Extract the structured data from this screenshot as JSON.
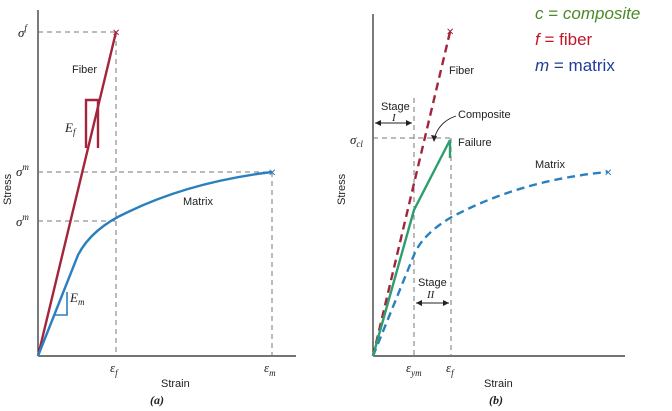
{
  "legend": {
    "c": {
      "sym": "c",
      "eq": " = ",
      "word": "composite",
      "color": "#4a8a2a"
    },
    "f": {
      "sym": "f",
      "eq": " = ",
      "word": "fiber",
      "color": "#c0182a"
    },
    "m": {
      "sym": "m",
      "eq": " = ",
      "word": "matrix",
      "color": "#1f3c9a"
    }
  },
  "colors": {
    "fiber": "#a3243b",
    "matrix": "#2a7fbf",
    "composite": "#2e9e6e"
  },
  "panel_a": {
    "caption": "(a)",
    "xlabel": "Strain",
    "ylabel": "Stress",
    "fiber_label": "Fiber",
    "matrix_label": "Matrix",
    "y_ticks": {
      "sigma_f": "σ",
      "sigma_f_sup": "f",
      "sigma_m": "σ",
      "sigma_m_sup": "m",
      "sigma_m_prime": "σ",
      "sigma_m_prime_sup": "m"
    },
    "x_ticks": {
      "eps_f": "ε",
      "eps_f_sub": "f",
      "eps_m": "ε",
      "eps_m_sub": "m"
    },
    "ef_label": "E",
    "ef_sub": "f",
    "em_label": "E",
    "em_sub": "m"
  },
  "panel_b": {
    "caption": "(b)",
    "xlabel": "Strain",
    "ylabel": "Stress",
    "fiber_label": "Fiber",
    "matrix_label": "Matrix",
    "composite_label": "Composite",
    "failure_label": "Failure",
    "stage1_label": "Stage",
    "stage1_num": "I",
    "stage2_label": "Stage",
    "stage2_num": "II",
    "y_ticks": {
      "sigma_cl": "σ",
      "sigma_cl_sub": "cl"
    },
    "x_ticks": {
      "eps_ym": "ε",
      "eps_ym_sub": "ym",
      "eps_f": "ε",
      "eps_f_sub": "f"
    }
  }
}
